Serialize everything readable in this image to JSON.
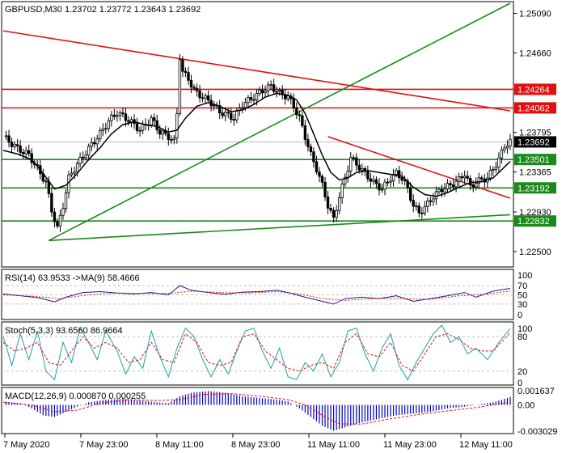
{
  "header": {
    "title": "GBPUSD,M30  1.23702 1.23772 1.23643 1.23692"
  },
  "panels": {
    "rsi": {
      "label": "RSI(14) 63.9533  ->MA(9) 58.4666",
      "levels": [
        "70",
        "50",
        "30",
        "0"
      ],
      "top_value": "100"
    },
    "stoch": {
      "label": "Stoch(5,3,3) 93.6560 86.9664",
      "levels": [
        "100",
        "80",
        "20",
        "0"
      ]
    },
    "macd": {
      "label": "MACD(12,26,9) 0.000870 0.000255",
      "levels": [
        "0.001637",
        "0.00",
        "-0.003029"
      ]
    }
  },
  "colors": {
    "candle": "#000000",
    "ma": "#000000",
    "trend_green": "#1a8a1a",
    "resist_red": "#e01010",
    "rsi": "#1a1a8a",
    "rsi_ma": "#e01010",
    "stoch_main": "#20a0a0",
    "stoch_signal": "#e01010",
    "macd_hist": "#0000cc",
    "macd_signal": "#e01010"
  },
  "chart_data": {
    "type": "candlestick",
    "symbol": "GBPUSD",
    "timeframe": "M30",
    "ylim": [
      1.2235,
      1.252
    ],
    "price_ticks": [
      "1.25090",
      "1.24660",
      "1.23795",
      "1.23365",
      "1.22930",
      "1.22500"
    ],
    "time_labels": [
      "7 May 2020",
      "7 May 23:00",
      "8 May 11:00",
      "8 May 23:00",
      "11 May 11:00",
      "11 May 23:00",
      "12 May 11:00"
    ],
    "horizontal_levels": [
      {
        "value": 1.24264,
        "label": "1.24264",
        "color": "#e01010"
      },
      {
        "value": 1.24062,
        "label": "1.24062",
        "color": "#e01010"
      },
      {
        "value": 1.23501,
        "label": "1.23501",
        "color": "#1a8a1a"
      },
      {
        "value": 1.23192,
        "label": "1.23192",
        "color": "#1a8a1a"
      },
      {
        "value": 1.22832,
        "label": "1.22832",
        "color": "#1a8a1a"
      }
    ],
    "current_price": {
      "value": 1.23692,
      "label": "1.23692"
    },
    "close_path": [
      [
        0,
        1.2375
      ],
      [
        5,
        1.2362
      ],
      [
        9,
        1.2355
      ],
      [
        12,
        1.234
      ],
      [
        15,
        1.2325
      ],
      [
        17,
        1.2295
      ],
      [
        19,
        1.2275
      ],
      [
        21,
        1.23
      ],
      [
        23,
        1.233
      ],
      [
        26,
        1.2345
      ],
      [
        30,
        1.2362
      ],
      [
        34,
        1.2378
      ],
      [
        37,
        1.2392
      ],
      [
        40,
        1.2401
      ],
      [
        43,
        1.2395
      ],
      [
        46,
        1.2388
      ],
      [
        48,
        1.2382
      ],
      [
        52,
        1.2394
      ],
      [
        55,
        1.238
      ],
      [
        58,
        1.2375
      ],
      [
        60,
        1.237
      ],
      [
        61,
        1.24
      ],
      [
        62,
        1.2462
      ],
      [
        63,
        1.2445
      ],
      [
        65,
        1.2438
      ],
      [
        67,
        1.2425
      ],
      [
        70,
        1.2418
      ],
      [
        73,
        1.2412
      ],
      [
        76,
        1.2402
      ],
      [
        79,
        1.2398
      ],
      [
        81,
        1.2395
      ],
      [
        84,
        1.241
      ],
      [
        88,
        1.2418
      ],
      [
        91,
        1.2425
      ],
      [
        94,
        1.243
      ],
      [
        97,
        1.2422
      ],
      [
        100,
        1.2418
      ],
      [
        102,
        1.2408
      ],
      [
        104,
        1.2395
      ],
      [
        106,
        1.2375
      ],
      [
        108,
        1.2355
      ],
      [
        110,
        1.234
      ],
      [
        112,
        1.2322
      ],
      [
        114,
        1.23
      ],
      [
        116,
        1.2285
      ],
      [
        118,
        1.231
      ],
      [
        120,
        1.233
      ],
      [
        122,
        1.2352
      ],
      [
        124,
        1.2345
      ],
      [
        127,
        1.2335
      ],
      [
        130,
        1.2325
      ],
      [
        133,
        1.2318
      ],
      [
        136,
        1.233
      ],
      [
        138,
        1.2335
      ],
      [
        140,
        1.233
      ],
      [
        142,
        1.2318
      ],
      [
        144,
        1.23
      ],
      [
        146,
        1.2292
      ],
      [
        148,
        1.2298
      ],
      [
        151,
        1.231
      ],
      [
        154,
        1.2318
      ],
      [
        157,
        1.2322
      ],
      [
        160,
        1.2328
      ],
      [
        162,
        1.2335
      ],
      [
        164,
        1.232
      ],
      [
        166,
        1.2326
      ],
      [
        168,
        1.2328
      ],
      [
        170,
        1.233
      ],
      [
        172,
        1.234
      ],
      [
        174,
        1.235
      ],
      [
        176,
        1.2365
      ],
      [
        178,
        1.2369
      ]
    ],
    "ma_path": [
      [
        0,
        1.236
      ],
      [
        5,
        1.2356
      ],
      [
        10,
        1.235
      ],
      [
        14,
        1.2335
      ],
      [
        18,
        1.2318
      ],
      [
        22,
        1.2322
      ],
      [
        26,
        1.2335
      ],
      [
        30,
        1.235
      ],
      [
        34,
        1.2363
      ],
      [
        38,
        1.2378
      ],
      [
        42,
        1.2388
      ],
      [
        46,
        1.2391
      ],
      [
        50,
        1.2388
      ],
      [
        54,
        1.2386
      ],
      [
        58,
        1.238
      ],
      [
        61,
        1.2382
      ],
      [
        64,
        1.2395
      ],
      [
        68,
        1.2408
      ],
      [
        72,
        1.2412
      ],
      [
        76,
        1.2408
      ],
      [
        80,
        1.2402
      ],
      [
        84,
        1.2404
      ],
      [
        88,
        1.241
      ],
      [
        92,
        1.2418
      ],
      [
        96,
        1.2422
      ],
      [
        100,
        1.242
      ],
      [
        103,
        1.2415
      ],
      [
        106,
        1.24
      ],
      [
        109,
        1.2378
      ],
      [
        112,
        1.2355
      ],
      [
        115,
        1.2336
      ],
      [
        118,
        1.2328
      ],
      [
        121,
        1.233
      ],
      [
        124,
        1.2336
      ],
      [
        128,
        1.2338
      ],
      [
        132,
        1.2336
      ],
      [
        136,
        1.2334
      ],
      [
        140,
        1.2332
      ],
      [
        144,
        1.232
      ],
      [
        148,
        1.2312
      ],
      [
        152,
        1.231
      ],
      [
        156,
        1.2314
      ],
      [
        160,
        1.232
      ],
      [
        164,
        1.2325
      ],
      [
        168,
        1.2326
      ],
      [
        172,
        1.233
      ],
      [
        176,
        1.2342
      ],
      [
        178,
        1.2348
      ]
    ],
    "trendlines": [
      {
        "name": "support-up",
        "color": "#1a8a1a",
        "from": [
          16,
          1.2262
        ],
        "to": [
          178,
          1.252
        ]
      },
      {
        "name": "resistance-down",
        "color": "#e01010",
        "from": [
          0,
          1.249
        ],
        "to": [
          178,
          1.2403
        ]
      },
      {
        "name": "short-resistance",
        "color": "#e01010",
        "from": [
          114,
          1.2375
        ],
        "to": [
          178,
          1.2308
        ]
      },
      {
        "name": "base-support",
        "color": "#1a8a1a",
        "from": [
          16,
          1.2262
        ],
        "to": [
          178,
          1.229
        ]
      }
    ],
    "rsi_path": [
      [
        0,
        52
      ],
      [
        6,
        48
      ],
      [
        12,
        44
      ],
      [
        18,
        35
      ],
      [
        22,
        45
      ],
      [
        28,
        55
      ],
      [
        34,
        57
      ],
      [
        40,
        54
      ],
      [
        46,
        52
      ],
      [
        52,
        55
      ],
      [
        58,
        50
      ],
      [
        62,
        70
      ],
      [
        66,
        60
      ],
      [
        72,
        55
      ],
      [
        78,
        51
      ],
      [
        84,
        56
      ],
      [
        90,
        57
      ],
      [
        96,
        60
      ],
      [
        100,
        55
      ],
      [
        106,
        45
      ],
      [
        112,
        36
      ],
      [
        116,
        30
      ],
      [
        120,
        42
      ],
      [
        126,
        45
      ],
      [
        132,
        42
      ],
      [
        138,
        48
      ],
      [
        144,
        36
      ],
      [
        150,
        42
      ],
      [
        156,
        48
      ],
      [
        162,
        55
      ],
      [
        166,
        45
      ],
      [
        172,
        58
      ],
      [
        178,
        64
      ]
    ],
    "rsi_ma_path": [
      [
        0,
        50
      ],
      [
        10,
        47
      ],
      [
        20,
        42
      ],
      [
        30,
        50
      ],
      [
        40,
        54
      ],
      [
        50,
        53
      ],
      [
        58,
        53
      ],
      [
        66,
        58
      ],
      [
        76,
        55
      ],
      [
        86,
        54
      ],
      [
        96,
        57
      ],
      [
        104,
        52
      ],
      [
        112,
        42
      ],
      [
        120,
        38
      ],
      [
        130,
        42
      ],
      [
        140,
        42
      ],
      [
        150,
        40
      ],
      [
        160,
        48
      ],
      [
        170,
        52
      ],
      [
        178,
        58
      ]
    ],
    "stoch_main_path": [
      [
        0,
        80
      ],
      [
        3,
        30
      ],
      [
        6,
        85
      ],
      [
        9,
        40
      ],
      [
        12,
        90
      ],
      [
        15,
        20
      ],
      [
        18,
        5
      ],
      [
        21,
        70
      ],
      [
        24,
        35
      ],
      [
        27,
        95
      ],
      [
        30,
        70
      ],
      [
        33,
        40
      ],
      [
        36,
        90
      ],
      [
        40,
        55
      ],
      [
        43,
        15
      ],
      [
        46,
        45
      ],
      [
        49,
        25
      ],
      [
        52,
        90
      ],
      [
        55,
        45
      ],
      [
        58,
        10
      ],
      [
        61,
        60
      ],
      [
        64,
        95
      ],
      [
        67,
        80
      ],
      [
        70,
        40
      ],
      [
        73,
        10
      ],
      [
        76,
        40
      ],
      [
        79,
        15
      ],
      [
        82,
        55
      ],
      [
        85,
        90
      ],
      [
        88,
        95
      ],
      [
        91,
        55
      ],
      [
        94,
        25
      ],
      [
        97,
        60
      ],
      [
        100,
        10
      ],
      [
        103,
        5
      ],
      [
        106,
        35
      ],
      [
        109,
        20
      ],
      [
        112,
        50
      ],
      [
        115,
        10
      ],
      [
        118,
        35
      ],
      [
        121,
        90
      ],
      [
        124,
        95
      ],
      [
        127,
        50
      ],
      [
        130,
        20
      ],
      [
        133,
        60
      ],
      [
        136,
        85
      ],
      [
        139,
        30
      ],
      [
        142,
        5
      ],
      [
        145,
        35
      ],
      [
        148,
        60
      ],
      [
        151,
        85
      ],
      [
        154,
        100
      ],
      [
        157,
        70
      ],
      [
        160,
        80
      ],
      [
        163,
        50
      ],
      [
        166,
        60
      ],
      [
        170,
        40
      ],
      [
        174,
        70
      ],
      [
        178,
        94
      ]
    ],
    "stoch_signal_path": [
      [
        0,
        70
      ],
      [
        4,
        55
      ],
      [
        8,
        60
      ],
      [
        12,
        70
      ],
      [
        16,
        35
      ],
      [
        20,
        30
      ],
      [
        24,
        55
      ],
      [
        28,
        80
      ],
      [
        32,
        60
      ],
      [
        36,
        70
      ],
      [
        40,
        60
      ],
      [
        44,
        35
      ],
      [
        48,
        40
      ],
      [
        52,
        70
      ],
      [
        56,
        40
      ],
      [
        60,
        35
      ],
      [
        64,
        85
      ],
      [
        68,
        70
      ],
      [
        72,
        35
      ],
      [
        76,
        30
      ],
      [
        80,
        35
      ],
      [
        84,
        80
      ],
      [
        88,
        85
      ],
      [
        92,
        55
      ],
      [
        96,
        40
      ],
      [
        100,
        25
      ],
      [
        104,
        20
      ],
      [
        108,
        30
      ],
      [
        112,
        35
      ],
      [
        116,
        25
      ],
      [
        120,
        70
      ],
      [
        124,
        85
      ],
      [
        128,
        50
      ],
      [
        132,
        45
      ],
      [
        136,
        70
      ],
      [
        140,
        30
      ],
      [
        144,
        20
      ],
      [
        148,
        50
      ],
      [
        152,
        80
      ],
      [
        156,
        85
      ],
      [
        160,
        75
      ],
      [
        164,
        60
      ],
      [
        168,
        55
      ],
      [
        172,
        55
      ],
      [
        178,
        87
      ]
    ],
    "macd_hist": [
      [
        0,
        0.0004
      ],
      [
        6,
        0.0002
      ],
      [
        10,
        -0.0004
      ],
      [
        14,
        -0.0012
      ],
      [
        18,
        -0.0014
      ],
      [
        22,
        -0.0008
      ],
      [
        26,
        -0.0002
      ],
      [
        30,
        0.0003
      ],
      [
        36,
        0.0006
      ],
      [
        42,
        0.0007
      ],
      [
        48,
        0.0005
      ],
      [
        54,
        0.0003
      ],
      [
        58,
        0.0002
      ],
      [
        62,
        0.001
      ],
      [
        66,
        0.0014
      ],
      [
        72,
        0.0016
      ],
      [
        78,
        0.0014
      ],
      [
        84,
        0.001
      ],
      [
        90,
        0.0008
      ],
      [
        96,
        0.0006
      ],
      [
        100,
        0.0004
      ],
      [
        104,
        -0.0004
      ],
      [
        108,
        -0.0014
      ],
      [
        112,
        -0.0024
      ],
      [
        116,
        -0.003
      ],
      [
        120,
        -0.0026
      ],
      [
        126,
        -0.002
      ],
      [
        132,
        -0.0016
      ],
      [
        138,
        -0.0012
      ],
      [
        144,
        -0.001
      ],
      [
        150,
        -0.0008
      ],
      [
        156,
        -0.0004
      ],
      [
        162,
        -0.0002
      ],
      [
        168,
        0.0001
      ],
      [
        172,
        0.0003
      ],
      [
        176,
        0.0007
      ],
      [
        178,
        0.0009
      ]
    ],
    "macd_signal_path": [
      [
        0,
        0.0003
      ],
      [
        10,
        0.0
      ],
      [
        18,
        -0.0008
      ],
      [
        26,
        -0.0006
      ],
      [
        34,
        0.0002
      ],
      [
        44,
        0.0006
      ],
      [
        54,
        0.0005
      ],
      [
        62,
        0.0006
      ],
      [
        70,
        0.0012
      ],
      [
        80,
        0.0013
      ],
      [
        90,
        0.001
      ],
      [
        100,
        0.0006
      ],
      [
        106,
        0.0
      ],
      [
        112,
        -0.0012
      ],
      [
        118,
        -0.0022
      ],
      [
        126,
        -0.0022
      ],
      [
        136,
        -0.0016
      ],
      [
        146,
        -0.0011
      ],
      [
        156,
        -0.0007
      ],
      [
        166,
        -0.0003
      ],
      [
        172,
        0.0
      ],
      [
        178,
        0.0003
      ]
    ]
  }
}
